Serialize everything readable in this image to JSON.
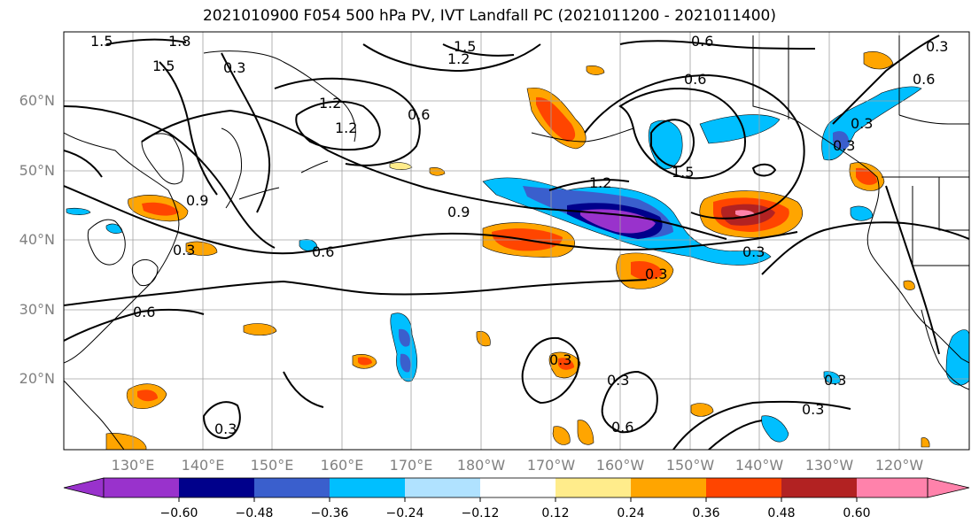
{
  "title": "2021010900 F054 500 hPa PV, IVT Landfall PC (2021011200 - 2021011400)",
  "latitude_labels": [
    "60°N",
    "50°N",
    "40°N",
    "30°N",
    "20°N"
  ],
  "longitude_labels": [
    "130°E",
    "140°E",
    "150°E",
    "160°E",
    "170°E",
    "180°W",
    "170°W",
    "160°W",
    "150°W",
    "140°W",
    "130°W",
    "120°W"
  ],
  "colorbar": {
    "tick_labels": [
      "−0.60",
      "−0.48",
      "−0.36",
      "−0.24",
      "−0.12",
      "0.12",
      "0.24",
      "0.36",
      "0.48",
      "0.60"
    ],
    "colors": [
      "#9932cc",
      "#00008b",
      "#3a5fcd",
      "#00bfff",
      "#b0e2ff",
      "#ffffff",
      "#ffec8b",
      "#ffa500",
      "#ff4500",
      "#b22222",
      "#ff82ab"
    ]
  },
  "contour_labels": [
    "1.5",
    "1.8",
    "1.5",
    "0.3",
    "1.5",
    "1.2",
    "0.6",
    "0.3",
    "1.2",
    "1.2",
    "0.6",
    "1.5",
    "1.2",
    "0.9",
    "0.9",
    "0.6",
    "0.3",
    "0.3",
    "0.6",
    "0.3",
    "0.6",
    "0.3",
    "0.3",
    "0.3",
    "0.3",
    "0.6",
    "0.3",
    "0.6",
    "0.3",
    "0.3"
  ]
}
